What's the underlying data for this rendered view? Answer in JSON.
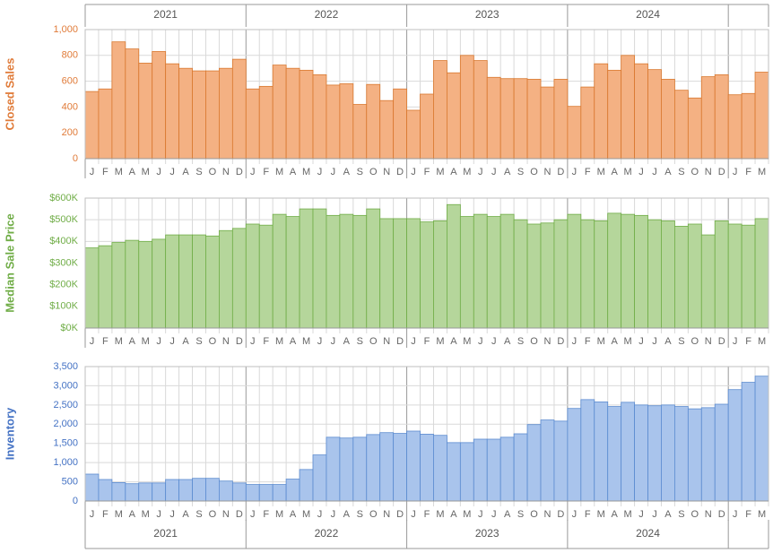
{
  "years": [
    "2021",
    "2022",
    "2023",
    "2024"
  ],
  "chart_data": [
    {
      "type": "bar",
      "ylabel": "Closed Sales",
      "color": "#f4b183",
      "edge": "#d9782f",
      "label_color": "#e07b39",
      "categories": [
        "J",
        "F",
        "M",
        "A",
        "M",
        "J",
        "J",
        "A",
        "S",
        "O",
        "N",
        "D",
        "J",
        "F",
        "M",
        "A",
        "M",
        "J",
        "J",
        "A",
        "S",
        "O",
        "N",
        "D",
        "J",
        "F",
        "M",
        "A",
        "M",
        "J",
        "J",
        "A",
        "S",
        "O",
        "N",
        "D",
        "J",
        "F",
        "M",
        "A",
        "M",
        "J",
        "J",
        "A",
        "S",
        "O",
        "N",
        "D",
        "J",
        "F",
        "M"
      ],
      "values": [
        520,
        540,
        905,
        850,
        740,
        830,
        735,
        700,
        680,
        680,
        700,
        770,
        540,
        560,
        725,
        700,
        685,
        650,
        570,
        580,
        420,
        575,
        450,
        540,
        375,
        500,
        760,
        665,
        800,
        760,
        630,
        620,
        620,
        615,
        555,
        615,
        405,
        555,
        735,
        685,
        800,
        735,
        690,
        615,
        530,
        470,
        635,
        650,
        495,
        505,
        670
      ],
      "ylim": [
        0,
        1000
      ],
      "yticks": [
        0,
        200,
        400,
        600,
        800,
        {
          "value": 1000,
          "label": "1,000"
        }
      ],
      "grid": true
    },
    {
      "type": "bar",
      "ylabel": "Median Sale Price",
      "color": "#b5d69b",
      "edge": "#70ad47",
      "label_color": "#70ad47",
      "categories": [
        "J",
        "F",
        "M",
        "A",
        "M",
        "J",
        "J",
        "A",
        "S",
        "O",
        "N",
        "D",
        "J",
        "F",
        "M",
        "A",
        "M",
        "J",
        "J",
        "A",
        "S",
        "O",
        "N",
        "D",
        "J",
        "F",
        "M",
        "A",
        "M",
        "J",
        "J",
        "A",
        "S",
        "O",
        "N",
        "D",
        "J",
        "F",
        "M",
        "A",
        "M",
        "J",
        "J",
        "A",
        "S",
        "O",
        "N",
        "D",
        "J",
        "F",
        "M"
      ],
      "values": [
        370000,
        380000,
        395000,
        405000,
        400000,
        410000,
        430000,
        430000,
        430000,
        425000,
        450000,
        460000,
        480000,
        475000,
        525000,
        515000,
        550000,
        550000,
        520000,
        525000,
        520000,
        550000,
        505000,
        505000,
        505000,
        490000,
        495000,
        570000,
        515000,
        525000,
        515000,
        525000,
        500000,
        480000,
        485000,
        500000,
        525000,
        500000,
        495000,
        530000,
        525000,
        520000,
        500000,
        495000,
        470000,
        480000,
        430000,
        495000,
        480000,
        475000,
        505000
      ],
      "ylim": [
        0,
        600000
      ],
      "yticks": [
        {
          "value": 0,
          "label": "$0K"
        },
        {
          "value": 100000,
          "label": "$100K"
        },
        {
          "value": 200000,
          "label": "$200K"
        },
        {
          "value": 300000,
          "label": "$300K"
        },
        {
          "value": 400000,
          "label": "$400K"
        },
        {
          "value": 500000,
          "label": "$500K"
        },
        {
          "value": 600000,
          "label": "$600K"
        }
      ],
      "grid": true
    },
    {
      "type": "bar",
      "ylabel": "Inventory",
      "color": "#a9c4ec",
      "edge": "#5b8bd0",
      "label_color": "#4472c4",
      "categories": [
        "J",
        "F",
        "M",
        "A",
        "M",
        "J",
        "J",
        "A",
        "S",
        "O",
        "N",
        "D",
        "J",
        "F",
        "M",
        "A",
        "M",
        "J",
        "J",
        "A",
        "S",
        "O",
        "N",
        "D",
        "J",
        "F",
        "M",
        "A",
        "M",
        "J",
        "J",
        "A",
        "S",
        "O",
        "N",
        "D",
        "J",
        "F",
        "M",
        "A",
        "M",
        "J",
        "J",
        "A",
        "S",
        "O",
        "N",
        "D",
        "J",
        "F",
        "M"
      ],
      "values": [
        700,
        560,
        480,
        450,
        470,
        470,
        560,
        560,
        590,
        590,
        520,
        470,
        430,
        430,
        430,
        570,
        820,
        1200,
        1660,
        1640,
        1660,
        1730,
        1780,
        1760,
        1820,
        1740,
        1710,
        1520,
        1520,
        1610,
        1610,
        1660,
        1750,
        1990,
        2110,
        2080,
        2410,
        2640,
        2580,
        2460,
        2570,
        2500,
        2480,
        2500,
        2460,
        2400,
        2430,
        2520,
        2900,
        3090,
        3250
      ],
      "ylim": [
        0,
        3500
      ],
      "yticks": [
        0,
        500,
        {
          "value": 1000,
          "label": "1,000"
        },
        {
          "value": 1500,
          "label": "1,500"
        },
        {
          "value": 2000,
          "label": "2,000"
        },
        {
          "value": 2500,
          "label": "2,500"
        },
        {
          "value": 3000,
          "label": "3,000"
        },
        {
          "value": 3500,
          "label": "3,500"
        }
      ],
      "grid": true
    }
  ]
}
